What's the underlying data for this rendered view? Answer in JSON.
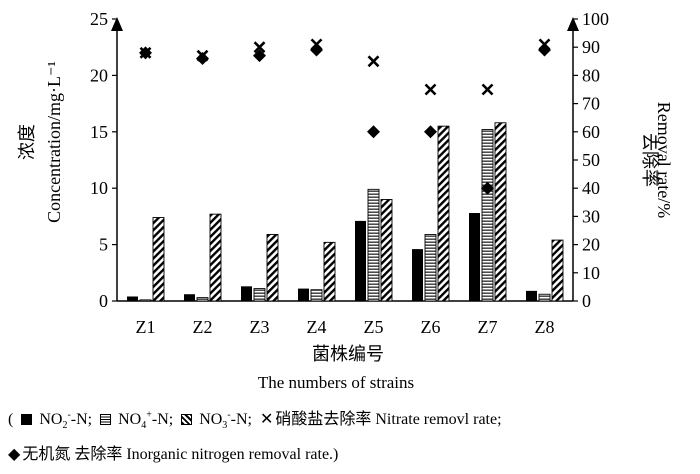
{
  "chart_data": {
    "type": "bar",
    "categories": [
      "Z1",
      "Z2",
      "Z3",
      "Z4",
      "Z5",
      "Z6",
      "Z7",
      "Z8"
    ],
    "xlabel_cn": "菌株编号",
    "xlabel_en": "The numbers of strains",
    "ylabel_left_cn": "浓度",
    "ylabel_left_en": "Concentration/mg·L⁻¹",
    "ylabel_right_cn": "去除率",
    "ylabel_right_en": "Removal rate/%",
    "ylim_left": [
      0,
      25
    ],
    "yticks_left": [
      0,
      5,
      10,
      15,
      20,
      25
    ],
    "ylim_right": [
      0,
      100
    ],
    "yticks_right": [
      0,
      10,
      20,
      30,
      40,
      50,
      60,
      70,
      80,
      90,
      100
    ],
    "grid": false,
    "series": [
      {
        "name": "NO2--N",
        "kind": "bar",
        "axis": "left",
        "pattern": "solid",
        "values": [
          0.4,
          0.6,
          1.3,
          1.1,
          7.1,
          4.6,
          7.8,
          0.9
        ]
      },
      {
        "name": "NO4+-N",
        "kind": "bar",
        "axis": "left",
        "pattern": "hlines",
        "values": [
          0.1,
          0.3,
          1.1,
          1.0,
          9.9,
          5.9,
          15.2,
          0.6
        ]
      },
      {
        "name": "NO3--N",
        "kind": "bar",
        "axis": "left",
        "pattern": "diagonal",
        "values": [
          7.4,
          7.7,
          5.9,
          5.2,
          9.0,
          15.5,
          15.8,
          5.4
        ]
      },
      {
        "name": "硝酸盐去除率 Nitrate removl rate",
        "kind": "marker",
        "axis": "right",
        "marker": "x",
        "values": [
          88,
          87,
          90,
          91,
          85,
          75,
          75,
          91
        ]
      },
      {
        "name": "无机氮 去除率 Inorganic nitrogen removal rate.",
        "kind": "marker",
        "axis": "right",
        "marker": "diamond",
        "values": [
          88,
          86,
          87,
          89,
          60,
          60,
          40,
          89
        ]
      }
    ]
  },
  "legend": {
    "open_paren": "(",
    "no2_label": "NO",
    "no2_sub": "2",
    "no2_sup": "-",
    "no2_tail": "-N;",
    "no4_label": "NO",
    "no4_sub": "4",
    "no4_sup": "+",
    "no4_tail": "-N;",
    "no3_label": "NO",
    "no3_sub": "3",
    "no3_sup": "-",
    "no3_tail": "-N;",
    "nitrate_symbol": "✕",
    "nitrate_label": "硝酸盐去除率 Nitrate removl rate;",
    "inorganic_symbol": "◆",
    "inorganic_label": "无机氮 去除率 Inorganic nitrogen removal rate.)"
  }
}
